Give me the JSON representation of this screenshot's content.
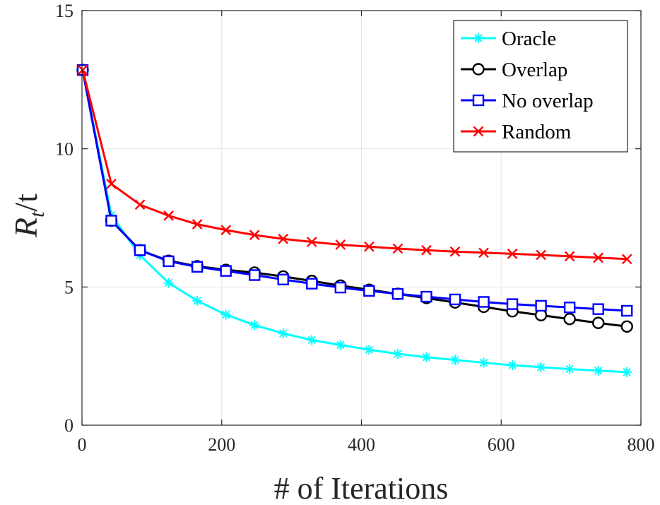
{
  "chart_data": {
    "type": "line",
    "xlabel": "# of Iterations",
    "ylabel": {
      "main": "R",
      "sub": "t",
      "suffix": "/t"
    },
    "xlim": [
      0,
      800
    ],
    "ylim": [
      0,
      15
    ],
    "xticks": [
      0,
      200,
      400,
      600,
      800
    ],
    "yticks": [
      0,
      5,
      10,
      15
    ],
    "grid": true,
    "legend_position": "top-right",
    "x": [
      1,
      42,
      83,
      124,
      165,
      206,
      247,
      288,
      329,
      370,
      411,
      452,
      493,
      534,
      575,
      616,
      657,
      698,
      739,
      780
    ],
    "series": [
      {
        "name": "Oracle",
        "color": "#00ffff",
        "marker": "asterisk",
        "values": [
          12.85,
          7.6,
          6.15,
          5.15,
          4.5,
          4.0,
          3.62,
          3.32,
          3.08,
          2.9,
          2.73,
          2.58,
          2.46,
          2.36,
          2.26,
          2.17,
          2.1,
          2.03,
          1.97,
          1.92
        ]
      },
      {
        "name": "Overlap",
        "color": "#000000",
        "marker": "circle",
        "values": [
          12.85,
          7.4,
          6.33,
          5.95,
          5.75,
          5.62,
          5.52,
          5.38,
          5.22,
          5.05,
          4.9,
          4.75,
          4.6,
          4.44,
          4.28,
          4.12,
          3.98,
          3.84,
          3.7,
          3.57
        ]
      },
      {
        "name": "No overlap",
        "color": "#0000ff",
        "marker": "square",
        "values": [
          12.85,
          7.4,
          6.33,
          5.93,
          5.73,
          5.58,
          5.43,
          5.27,
          5.12,
          4.98,
          4.86,
          4.75,
          4.65,
          4.55,
          4.46,
          4.38,
          4.32,
          4.26,
          4.2,
          4.14
        ]
      },
      {
        "name": "Random",
        "color": "#ff0000",
        "marker": "x",
        "values": [
          12.85,
          8.73,
          7.98,
          7.58,
          7.27,
          7.06,
          6.88,
          6.74,
          6.63,
          6.53,
          6.46,
          6.39,
          6.33,
          6.28,
          6.24,
          6.2,
          6.16,
          6.11,
          6.06,
          6.01
        ]
      }
    ]
  }
}
